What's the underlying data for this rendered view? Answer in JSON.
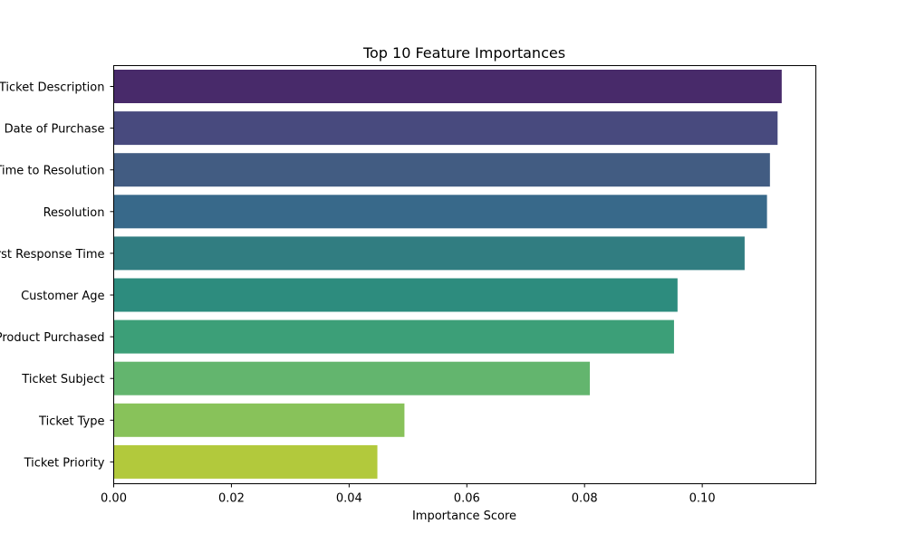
{
  "chart_data": {
    "type": "bar",
    "orientation": "horizontal",
    "title": "Top 10 Feature Importances",
    "xlabel": "Importance Score",
    "ylabel": "",
    "xlim": [
      0,
      0.1193
    ],
    "xticks": [
      "0.00",
      "0.02",
      "0.04",
      "0.06",
      "0.08",
      "0.10"
    ],
    "xtick_values": [
      0,
      0.02,
      0.04,
      0.06,
      0.08,
      0.1
    ],
    "grid": false,
    "categories": [
      "Ticket Description",
      "Date of Purchase",
      "Time to Resolution",
      "Resolution",
      "First Response Time",
      "Customer Age",
      "Product Purchased",
      "Ticket Subject",
      "Ticket Type",
      "Ticket Priority"
    ],
    "values": [
      0.1135,
      0.1128,
      0.1115,
      0.111,
      0.1072,
      0.0958,
      0.0952,
      0.0809,
      0.0494,
      0.0448
    ],
    "colors": [
      "#482a6a",
      "#484a7e",
      "#425c82",
      "#38698a",
      "#317d81",
      "#2d8c7e",
      "#3c9f78",
      "#63b56e",
      "#88c25a",
      "#b2c93c"
    ]
  }
}
